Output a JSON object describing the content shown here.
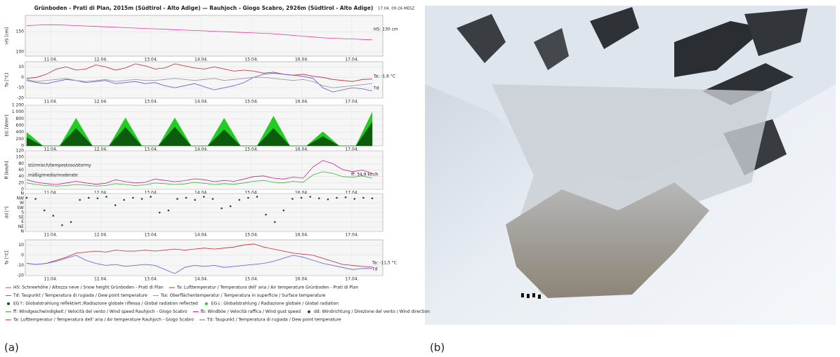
{
  "figure_a": {
    "title": "Grünboden - Prati di Plan, 2015m (Südtirol - Alto Adige) — Rauhjoch - Giogo Scabro, 2926m (Südtirol - Alto Adige)",
    "timestamp": "17.04. 09:26 MESZ",
    "dates": [
      "11.04.",
      "12.04.",
      "13.04.",
      "14.04.",
      "15.04.",
      "16.04.",
      "17.04."
    ],
    "panels": [
      {
        "type": "line",
        "ylabel": "HS [cm]",
        "ylim": [
          90,
          190
        ],
        "yticks": [
          100,
          150
        ],
        "grid": true,
        "series": [
          {
            "name": "HS: Schneehöhe / Altezza neve / Snow height  Grünboden - Prati di Plan",
            "color": "#e8399a",
            "values": [
              165,
              166,
              167,
              167,
              166,
              165,
              164,
              163,
              162,
              161,
              160,
              159,
              158,
              157,
              156,
              155,
              154,
              153,
              152,
              151,
              150,
              149,
              148,
              147,
              146,
              145,
              143,
              141,
              139,
              137,
              135,
              134,
              133,
              132,
              131,
              130
            ]
          }
        ],
        "annotations": [
          {
            "text": "HS: 130 cm",
            "color": "#e8399a"
          }
        ]
      },
      {
        "type": "line",
        "ylabel": "Ta [°C]",
        "ylim": [
          -20,
          15
        ],
        "yticks": [
          -20,
          -10,
          0,
          10
        ],
        "grid": true,
        "series": [
          {
            "name": "Ta: Lufttemperatur / Temperatura dell' aria / Air temperature  Grünboden - Prati di Plan",
            "color": "#c0282a",
            "values": [
              -1,
              0,
              3,
              8,
              10,
              7,
              8,
              12,
              10,
              7,
              9,
              13,
              11,
              8,
              9,
              13,
              11,
              9,
              8,
              10,
              8,
              6,
              7,
              6,
              4,
              5,
              3,
              2,
              3,
              1,
              0,
              -2,
              -3,
              -4,
              -2,
              -1.6
            ]
          },
          {
            "name": "Td: Taupunkt / Temperatura di rugiada / Dew point temperature",
            "color": "#5a5ae6",
            "values": [
              -3,
              -5,
              -6,
              -4,
              -2,
              -3,
              -5,
              -4,
              -3,
              -6,
              -5,
              -4,
              -6,
              -5,
              -8,
              -10,
              -8,
              -6,
              -9,
              -12,
              -10,
              -8,
              -5,
              0,
              3,
              4,
              3,
              2,
              1,
              -1,
              -10,
              -14,
              -12,
              -10,
              -11,
              -13
            ]
          },
          {
            "name": "Tss: Oberflächentemperatur / Temperatura in superficie / Surface temperature",
            "color": "#999999",
            "values": [
              -2,
              -4,
              -3,
              -2,
              -1,
              -3,
              -4,
              -3,
              -2,
              -4,
              -3,
              -2,
              -3,
              -3,
              -2,
              -1,
              -2,
              -3,
              -2,
              -1,
              -3,
              -2,
              -1,
              0,
              0,
              -1,
              -2,
              -3,
              -2,
              -4,
              -8,
              -10,
              -9,
              -8,
              -7,
              -6
            ]
          }
        ],
        "annotations": [
          {
            "text": "Ta: -1,6 °C",
            "color": "#c0282a"
          },
          {
            "text": "Td",
            "color": "#5a5ae6"
          }
        ]
      },
      {
        "type": "area",
        "ylabel": "EG [W/m²]",
        "ylim": [
          0,
          1200
        ],
        "yticks": [
          0,
          200,
          400,
          600,
          800,
          {
            "value": 1000,
            "label": "1 000"
          },
          {
            "value": 1200,
            "label": "1 200"
          }
        ],
        "grid": true,
        "series": [
          {
            "name": "EG↑: Globalstrahlung reflektiert /Radiazione globale riflessa / Global radiation reflected",
            "color": "#0d5c0d",
            "values": [
              250,
              120,
              0,
              0,
              0,
              260,
              520,
              260,
              0,
              0,
              0,
              275,
              550,
              275,
              0,
              0,
              0,
              280,
              560,
              280,
              0,
              0,
              0,
              240,
              480,
              240,
              0,
              0,
              0,
              260,
              520,
              260,
              0,
              0,
              0,
              140,
              280,
              140,
              0,
              0,
              0,
              350,
              700
            ]
          },
          {
            "name": "EG↓: Globalstrahlung / Radiazione globale / Global radiation",
            "color": "#22cc22",
            "values": [
              400,
              200,
              0,
              0,
              0,
              410,
              820,
              410,
              0,
              0,
              0,
              415,
              830,
              415,
              0,
              0,
              0,
              415,
              830,
              415,
              0,
              0,
              0,
              410,
              820,
              410,
              0,
              0,
              0,
              440,
              880,
              440,
              0,
              0,
              0,
              210,
              420,
              210,
              0,
              0,
              0,
              500,
              1000
            ]
          }
        ],
        "annotations": []
      },
      {
        "type": "line",
        "ylabel": "ff [km/h]",
        "ylim": [
          0,
          120
        ],
        "yticks": [
          0,
          20,
          40,
          60,
          80,
          100,
          120
        ],
        "grid": true,
        "series": [
          {
            "name": "ff: Windgeschwindigkeit / Velocità del vento / Wind speed  Rauhjoch - Giogo Scabro",
            "color": "#33bb33",
            "values": [
              20,
              15,
              12,
              10,
              12,
              15,
              13,
              10,
              12,
              18,
              15,
              12,
              14,
              20,
              18,
              15,
              17,
              22,
              19,
              15,
              18,
              16,
              20,
              25,
              28,
              22,
              20,
              25,
              22,
              45,
              55,
              50,
              40,
              38,
              42,
              34.9
            ]
          },
          {
            "name": "fb: Windböe / Velocità raffica / Wind gust speed",
            "color": "#cc2288",
            "values": [
              30,
              22,
              18,
              15,
              20,
              25,
              20,
              16,
              19,
              30,
              24,
              20,
              22,
              32,
              28,
              24,
              27,
              33,
              30,
              24,
              28,
              25,
              32,
              40,
              42,
              35,
              32,
              38,
              35,
              70,
              90,
              80,
              62,
              55,
              60,
              50
            ]
          }
        ],
        "annotations": [
          {
            "text": "stürmisch/tempestoso/stormy",
            "color": "#222222"
          },
          {
            "text": "mäßig/media/moderate",
            "color": "#222222"
          },
          {
            "text": "ff: 34,9 km/h",
            "color": "#33bb33"
          }
        ]
      },
      {
        "type": "scatter",
        "ylabel": "dd [°]",
        "ylim": [
          0,
          360
        ],
        "yticks": [
          {
            "value": 0,
            "label": "N"
          },
          {
            "value": 45,
            "label": "NE"
          },
          {
            "value": 90,
            "label": "E"
          },
          {
            "value": 135,
            "label": "SE"
          },
          {
            "value": 180,
            "label": "S"
          },
          {
            "value": 225,
            "label": "SW"
          },
          {
            "value": 270,
            "label": "W"
          },
          {
            "value": 315,
            "label": "NW"
          },
          {
            "value": 360,
            "label": "N"
          }
        ],
        "grid": true,
        "series": [
          {
            "name": "dd: Windrichtung / Direzione del vento / Wind direction",
            "color": "#1a4a55",
            "values": [
              320,
              310,
              200,
              150,
              60,
              90,
              300,
              320,
              315,
              330,
              250,
              300,
              320,
              310,
              330,
              180,
              200,
              310,
              320,
              300,
              330,
              310,
              220,
              240,
              300,
              320,
              330,
              160,
              90,
              200,
              310,
              320,
              330,
              315,
              305,
              320,
              325,
              310,
              320,
              315
            ]
          }
        ],
        "annotations": []
      },
      {
        "type": "line",
        "ylabel": "Ta [°C]",
        "ylim": [
          -20,
          15
        ],
        "yticks": [
          -20,
          -10,
          0,
          10
        ],
        "grid": true,
        "series": [
          {
            "name": "Ta: Lufttemperatur / Temperatura dell' aria / Air temperature  Rauhjoch - Giogo Scabro",
            "color": "#c0282a",
            "values": [
              -8,
              -9,
              -8,
              -5,
              -2,
              2,
              3,
              4,
              3,
              5,
              4,
              4,
              5,
              4,
              5,
              6,
              5,
              6,
              7,
              6,
              7,
              8,
              10,
              11,
              8,
              6,
              4,
              2,
              1,
              0,
              -3,
              -6,
              -9,
              -10,
              -11,
              -11.5
            ]
          },
          {
            "name": "Td: Taupunkt / Temperatura di rugiada / Dew point temperature",
            "color": "#5a5ae6",
            "values": [
              -8,
              -9,
              -8,
              -6,
              -3,
              0,
              -5,
              -8,
              -10,
              -9,
              -11,
              -10,
              -9,
              -10,
              -14,
              -18,
              -12,
              -10,
              -11,
              -10,
              -12,
              -11,
              -10,
              -9,
              -8,
              -6,
              -3,
              0,
              -2,
              -5,
              -8,
              -10,
              -12,
              -14,
              -13,
              -13
            ]
          }
        ],
        "annotations": [
          {
            "text": "Ta: -11,5 °C",
            "color": "#c0282a"
          },
          {
            "text": "Td",
            "color": "#5a5ae6"
          }
        ]
      }
    ],
    "label": "(a)"
  },
  "figure_b": {
    "label": "(b)"
  }
}
